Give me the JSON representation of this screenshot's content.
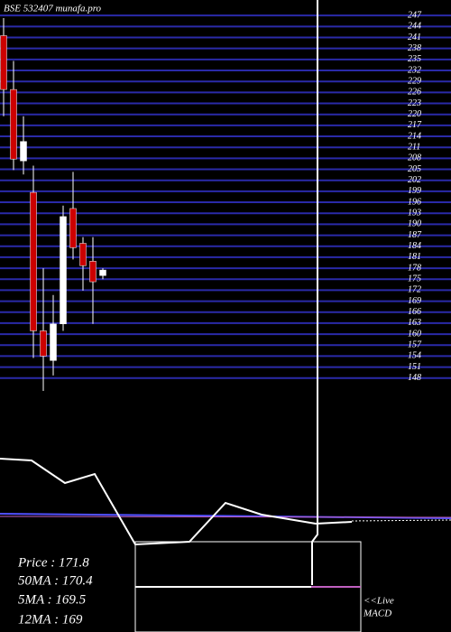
{
  "chart_data": {
    "type": "candlestick",
    "title": "BSE 532407 munafa.pro",
    "ylim": [
      144,
      250
    ],
    "yticks": [
      148,
      151,
      154,
      157,
      160,
      163,
      166,
      169,
      172,
      175,
      178,
      181,
      184,
      187,
      190,
      193,
      196,
      199,
      202,
      205,
      208,
      211,
      214,
      217,
      220,
      223,
      226,
      229,
      232,
      235,
      238,
      241,
      244,
      247
    ],
    "grid": true,
    "up_color": "#ffffff",
    "down_color": "#cc0000",
    "open": [
      241.5,
      226.8,
      207.3,
      198.7,
      160.9,
      152.8,
      162.8,
      194.3,
      184.8,
      179.9,
      176.0
    ],
    "high": [
      246.3,
      234.6,
      219.5,
      206.0,
      178.0,
      170.7,
      195.1,
      204.3,
      186.5,
      186.5,
      178.0
    ],
    "low": [
      219.5,
      204.8,
      203.6,
      153.5,
      144.5,
      148.7,
      160.9,
      180.4,
      171.9,
      162.8,
      175.0
    ],
    "close": [
      226.8,
      207.8,
      212.6,
      160.9,
      154.0,
      162.8,
      192.1,
      183.6,
      178.7,
      174.3,
      177.5
    ],
    "info": [
      "Price   : 171.8",
      "50MA : 170.4",
      "5MA : 169.5",
      "12MA : 169"
    ],
    "live": "<<Live",
    "indicator": "MACD"
  }
}
